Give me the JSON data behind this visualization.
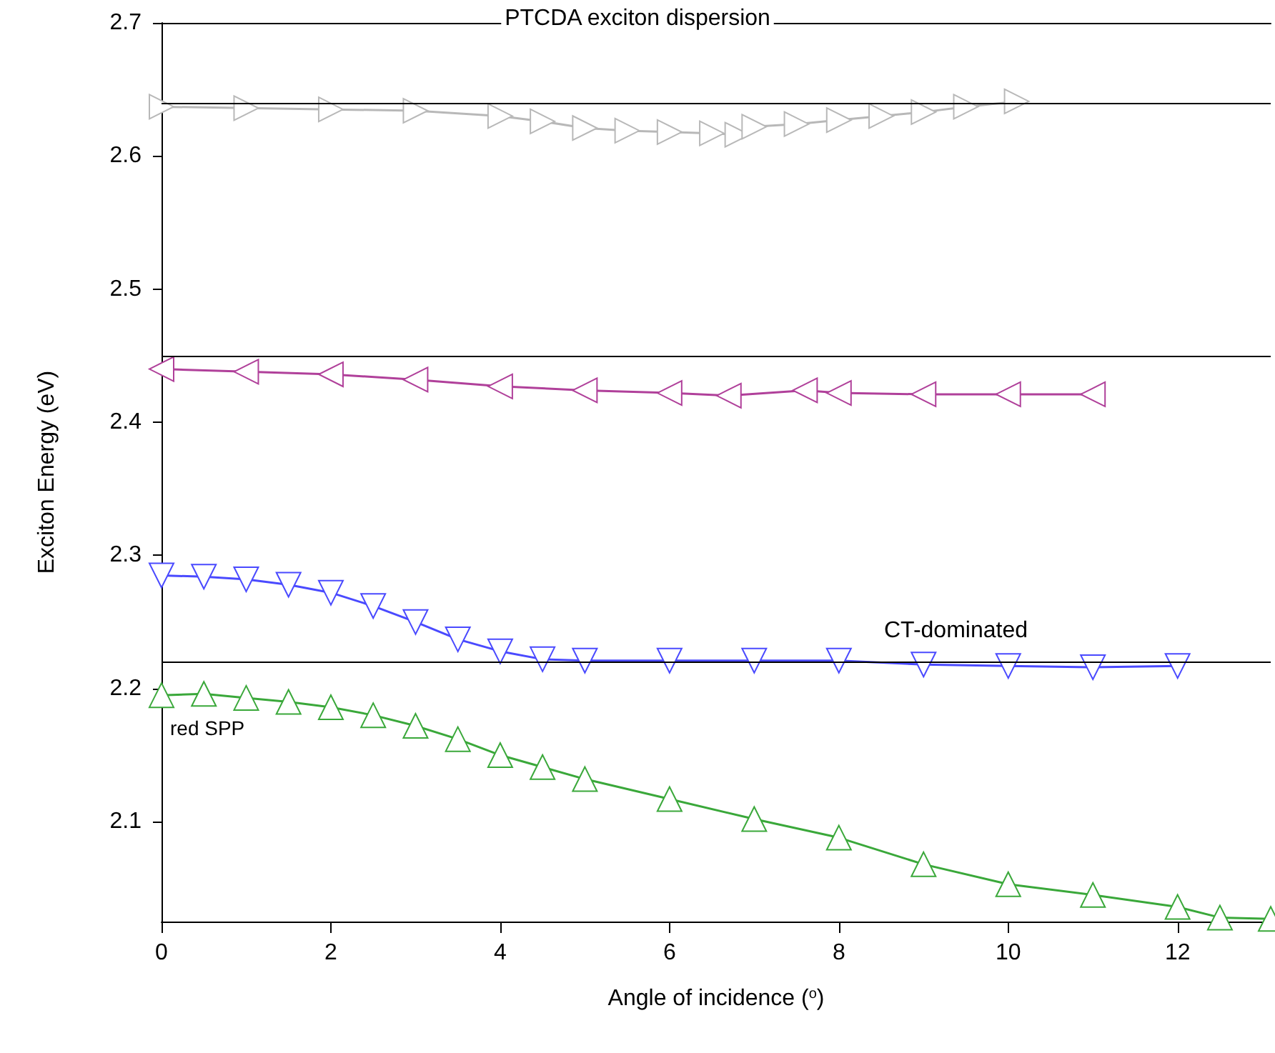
{
  "chart_data": {
    "type": "line",
    "title": "PTCDA exciton dispersion",
    "xlabel": "Angle of incidence ($^{o}$)",
    "ylabel": "Exciton Energy (eV)",
    "marker": "triangle",
    "xlim": [
      0,
      13.1
    ],
    "xticks": [
      0,
      2,
      4,
      6,
      8,
      10,
      12
    ],
    "ylim": [
      2.025,
      2.7
    ],
    "yticks": [
      2.1,
      2.2,
      2.3,
      2.4,
      2.5,
      2.6,
      2.7
    ],
    "series": [
      {
        "color": "#b8b8b8",
        "x": [
          0,
          1,
          2,
          3,
          4,
          4.5,
          5,
          5.5,
          6,
          6.5,
          6.8,
          7,
          7.5,
          8,
          8.5,
          9,
          9.5,
          10.1
        ],
        "values": [
          2.637,
          2.636,
          2.635,
          2.634,
          2.63,
          2.626,
          2.621,
          2.619,
          2.618,
          2.617,
          2.616,
          2.622,
          2.624,
          2.627,
          2.63,
          2.633,
          2.637,
          2.641
        ]
      },
      {
        "color": "#b0409a",
        "x": [
          0,
          1,
          2,
          3,
          4,
          5,
          6,
          6.7,
          7.6,
          8,
          9,
          10,
          11
        ],
        "values": [
          2.44,
          2.438,
          2.436,
          2.432,
          2.427,
          2.424,
          2.422,
          2.42,
          2.424,
          2.422,
          2.421,
          2.421,
          2.421
        ]
      },
      {
        "color": "#4a4aff",
        "x": [
          0,
          0.5,
          1,
          1.5,
          2,
          2.5,
          3,
          3.5,
          4,
          4.5,
          5,
          6,
          7,
          8,
          9,
          10,
          11,
          12
        ],
        "values": [
          2.285,
          2.284,
          2.282,
          2.278,
          2.272,
          2.262,
          2.25,
          2.237,
          2.228,
          2.222,
          2.221,
          2.221,
          2.221,
          2.221,
          2.218,
          2.217,
          2.216,
          2.217
        ]
      },
      {
        "color": "#3aa83a",
        "x": [
          0,
          0.5,
          1,
          1.5,
          2,
          2.5,
          3,
          3.5,
          4,
          4.5,
          5,
          6,
          7,
          8,
          9,
          10,
          11,
          12,
          12.5,
          13.1
        ],
        "values": [
          2.195,
          2.196,
          2.193,
          2.19,
          2.186,
          2.18,
          2.172,
          2.162,
          2.15,
          2.141,
          2.132,
          2.117,
          2.102,
          2.088,
          2.068,
          2.053,
          2.045,
          2.036,
          2.028,
          2.027
        ]
      }
    ],
    "ref_lines": [
      {
        "axis": "y",
        "value": 2.64,
        "label": null
      },
      {
        "axis": "y",
        "value": 2.45,
        "label": null
      },
      {
        "axis": "y",
        "value": 2.22,
        "label": "CT-dominated"
      }
    ],
    "annotations": [
      {
        "text": "red SPP",
        "x": 0,
        "y": 2.195
      }
    ]
  }
}
